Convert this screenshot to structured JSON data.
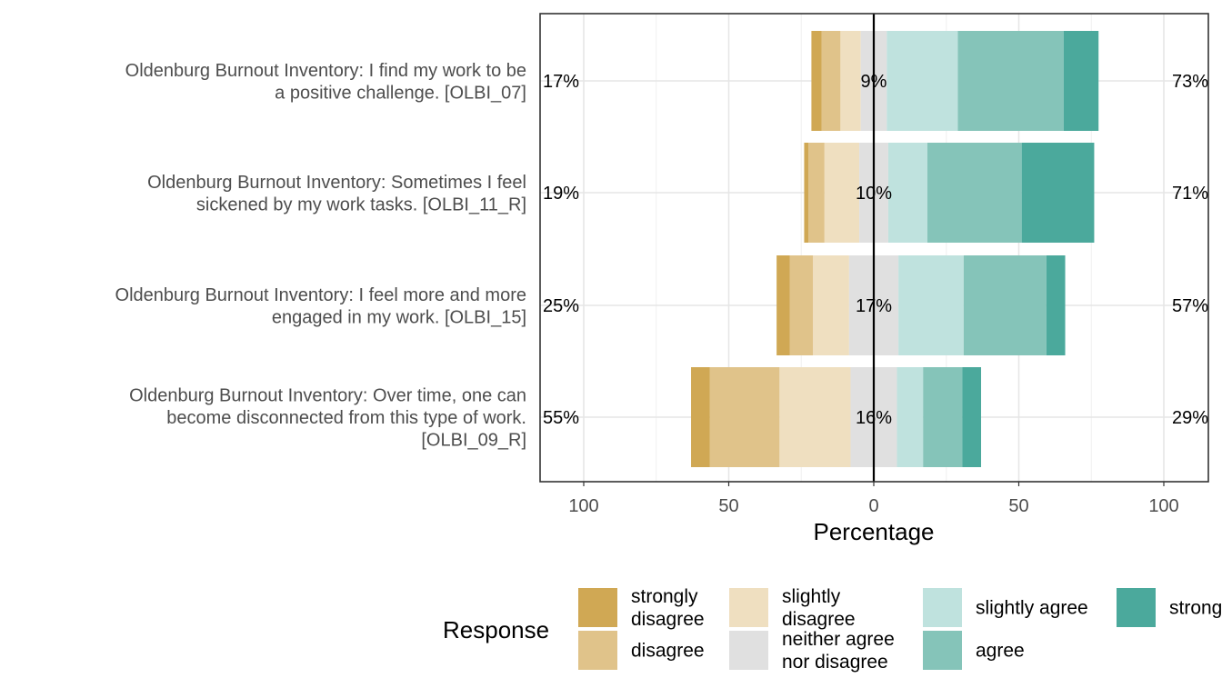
{
  "chart_data": {
    "type": "bar",
    "orientation": "horizontal-diverging",
    "xlabel": "Percentage",
    "xlim": [
      -100,
      100
    ],
    "x_ticks": [
      -100,
      -50,
      0,
      50,
      100
    ],
    "x_tick_labels": [
      "100",
      "50",
      "0",
      "50",
      "100"
    ],
    "grid": true,
    "legend_title": "Response",
    "legend_position": "bottom",
    "levels": [
      {
        "key": "sd",
        "label": "strongly disagree",
        "color": "#D0A854"
      },
      {
        "key": "d",
        "label": "disagree",
        "color": "#E0C38A"
      },
      {
        "key": "sld",
        "label": "slightly disagree",
        "color": "#EFDFC0"
      },
      {
        "key": "n",
        "label": "neither agree nor disagree",
        "color": "#E0E0E0"
      },
      {
        "key": "sla",
        "label": "slightly agree",
        "color": "#BFE2DE"
      },
      {
        "key": "a",
        "label": "agree",
        "color": "#85C4B9"
      },
      {
        "key": "sa",
        "label": "strongly agree",
        "color": "#4BA99C"
      }
    ],
    "items": [
      {
        "label": "Oldenburg Burnout Inventory: I find my work to be a positive challenge. [OLBI_07]",
        "label_lines": [
          "Oldenburg Burnout Inventory: I find my work to be",
          "a positive challenge. [OLBI_07]"
        ],
        "values": {
          "sd": 3.5,
          "d": 6.5,
          "sld": 7,
          "n": 9,
          "sla": 24.5,
          "a": 36.5,
          "sa": 12
        },
        "left_pct": "17%",
        "center_pct": "9%",
        "right_pct": "73%"
      },
      {
        "label": "Oldenburg Burnout Inventory: Sometimes I feel sickened by my work tasks. [OLBI_11_R]",
        "label_lines": [
          "Oldenburg Burnout Inventory: Sometimes I feel",
          "sickened by my work tasks. [OLBI_11_R]"
        ],
        "values": {
          "sd": 1.5,
          "d": 5.5,
          "sld": 12,
          "n": 10,
          "sla": 13.5,
          "a": 32.5,
          "sa": 25
        },
        "left_pct": "19%",
        "center_pct": "10%",
        "right_pct": "71%"
      },
      {
        "label": "Oldenburg Burnout Inventory: I feel more and more engaged in my work. [OLBI_15]",
        "label_lines": [
          "Oldenburg Burnout Inventory: I feel more and more",
          "engaged in my work. [OLBI_15]"
        ],
        "values": {
          "sd": 4.5,
          "d": 8,
          "sld": 12.5,
          "n": 17,
          "sla": 22.5,
          "a": 28.5,
          "sa": 6.5
        },
        "left_pct": "25%",
        "center_pct": "17%",
        "right_pct": "57%"
      },
      {
        "label": "Oldenburg Burnout Inventory: Over time, one can become disconnected from this type of work. [OLBI_09_R]",
        "label_lines": [
          "Oldenburg Burnout Inventory: Over time, one can",
          "become disconnected from this type of work.",
          "[OLBI_09_R]"
        ],
        "values": {
          "sd": 6.5,
          "d": 24,
          "sld": 24.5,
          "n": 16,
          "sla": 9,
          "a": 13.5,
          "sa": 6.5
        },
        "left_pct": "55%",
        "center_pct": "16%",
        "right_pct": "29%"
      }
    ]
  }
}
